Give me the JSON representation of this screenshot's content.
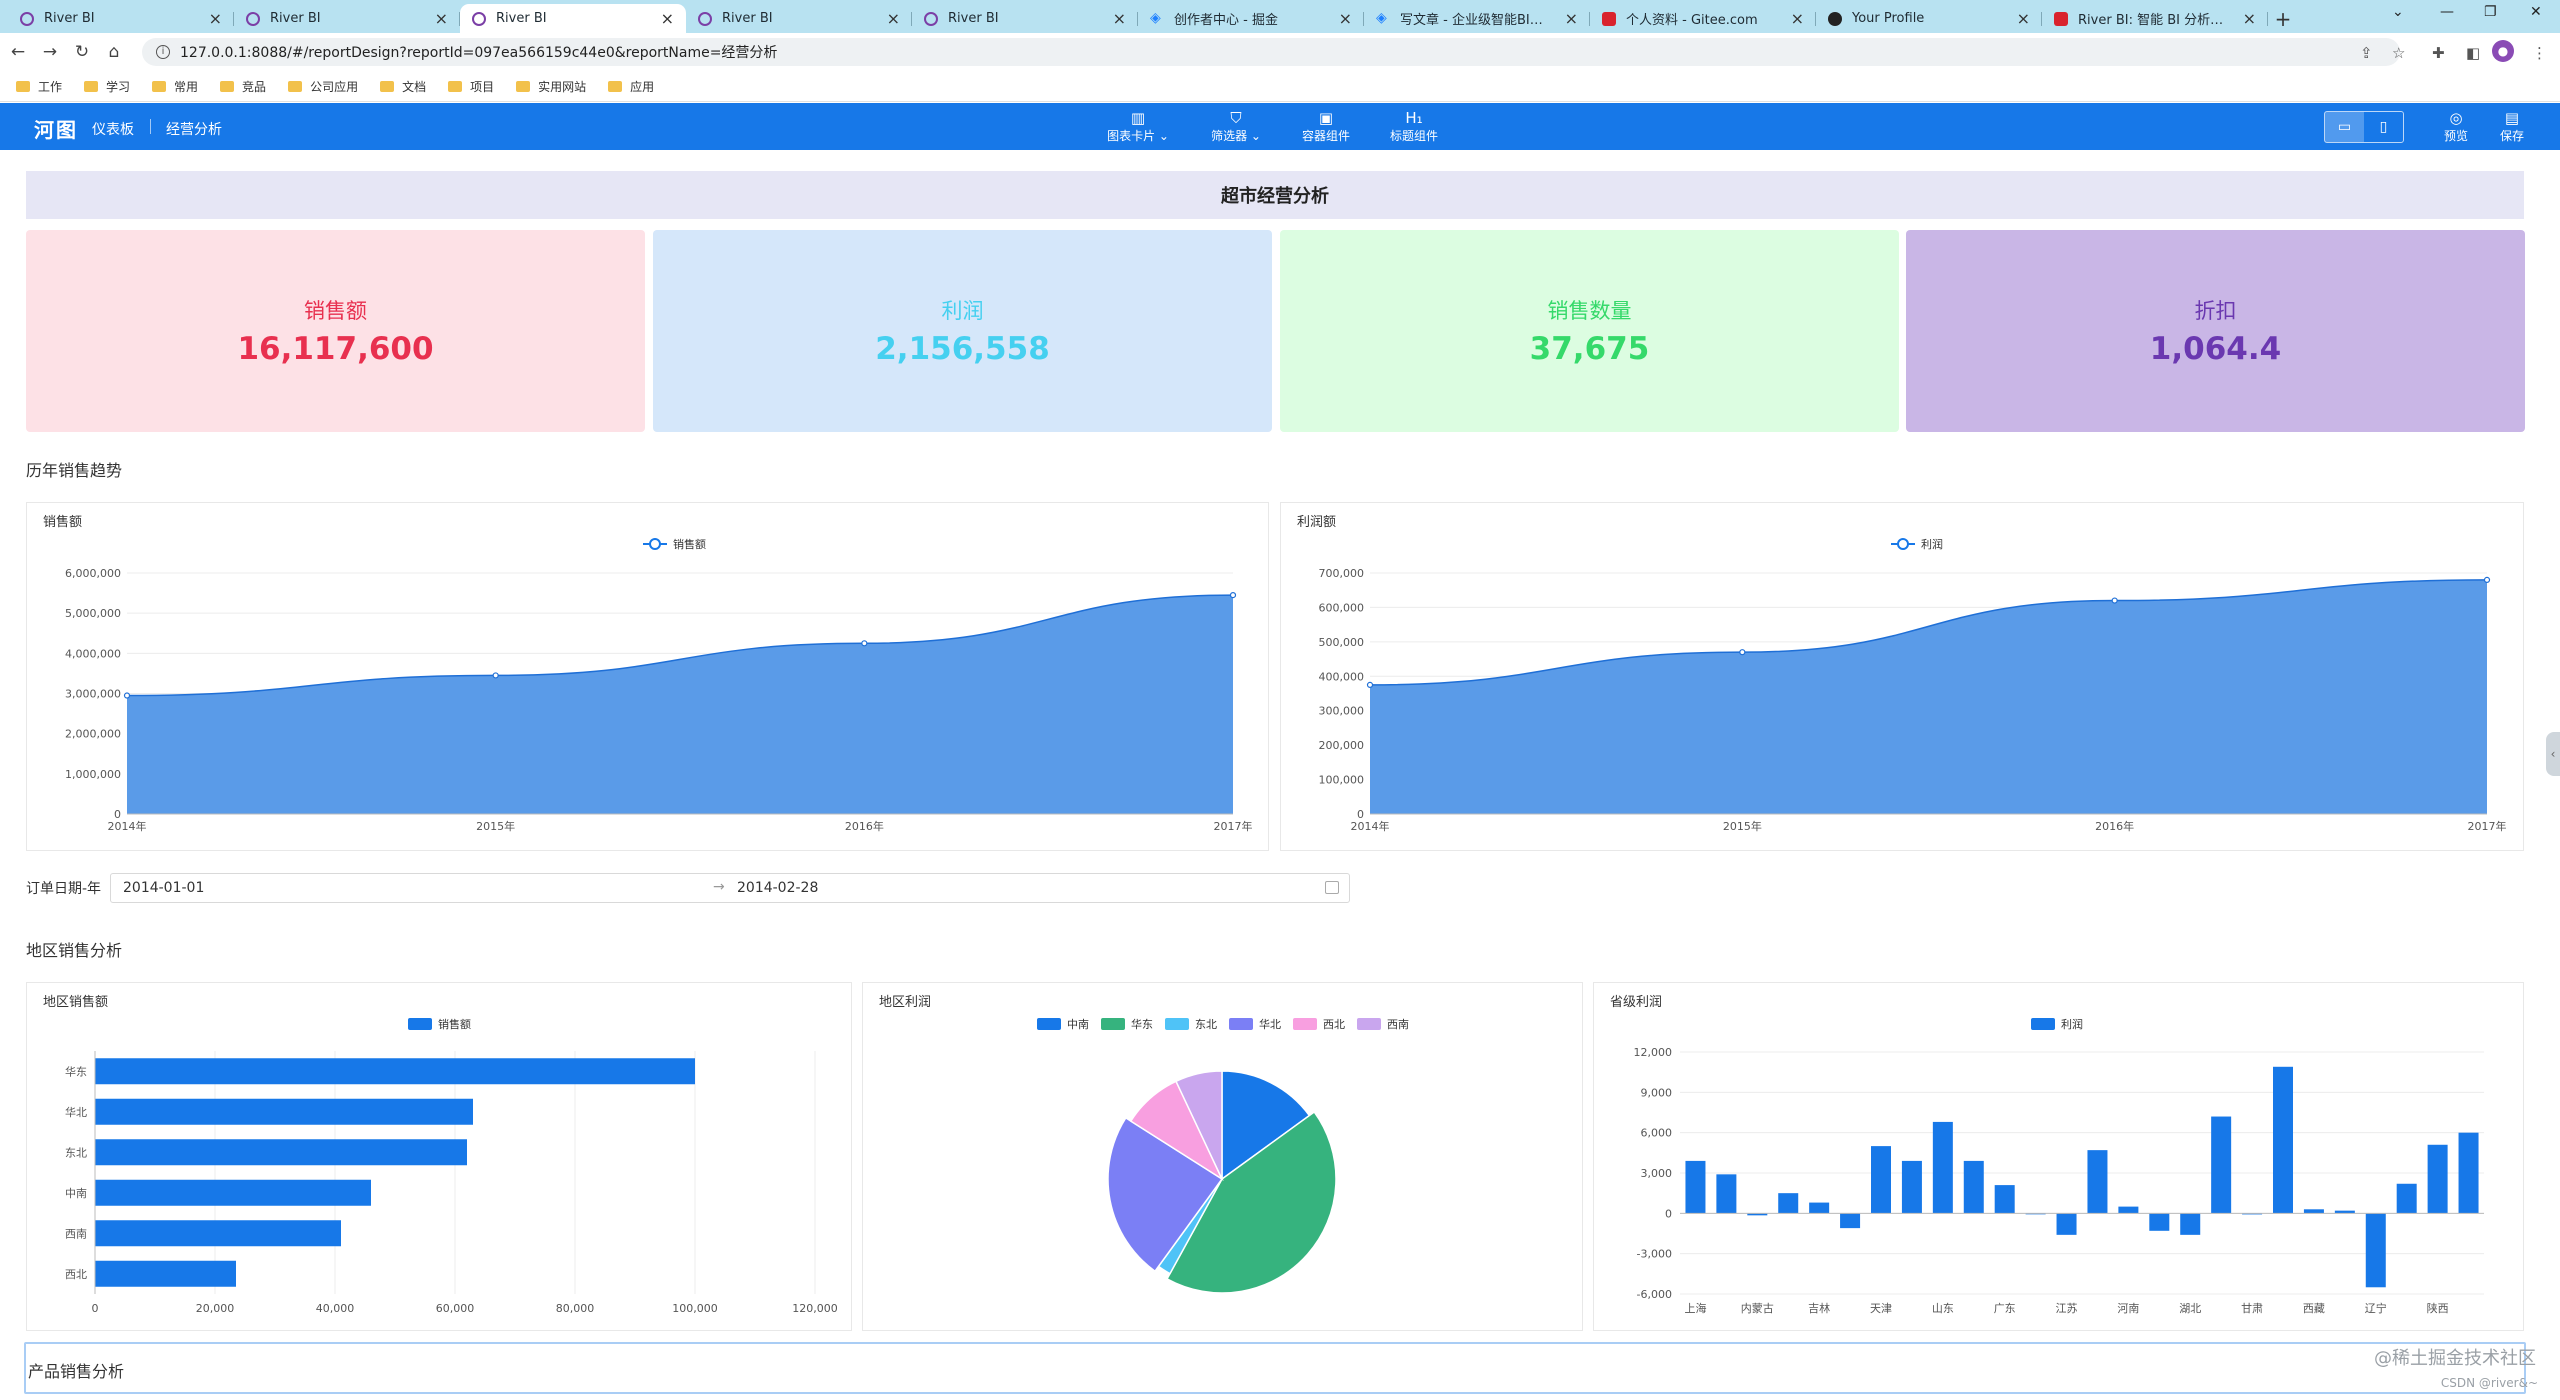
{
  "browser": {
    "tabs": [
      {
        "title": "River BI",
        "icon": "river-bi-icon"
      },
      {
        "title": "River BI",
        "icon": "river-bi-icon"
      },
      {
        "title": "River BI",
        "icon": "river-bi-icon",
        "active": true
      },
      {
        "title": "River BI",
        "icon": "river-bi-icon"
      },
      {
        "title": "River BI",
        "icon": "river-bi-icon"
      },
      {
        "title": "创作者中心 - 掘金",
        "icon": "juejin-icon"
      },
      {
        "title": "写文章 - 企业级智能BI平台开发",
        "icon": "juejin-icon"
      },
      {
        "title": "个人资料 - Gitee.com",
        "icon": "gitee-icon"
      },
      {
        "title": "Your Profile",
        "icon": "github-icon"
      },
      {
        "title": "River BI: 智能 BI 分析平台, 企",
        "icon": "gitee-icon"
      }
    ],
    "url": "127.0.0.1:8088/#/reportDesign?reportId=097ea566159c44e0&reportName=经营分析",
    "bookmarks": [
      "工作",
      "学习",
      "常用",
      "竞品",
      "公司应用",
      "文档",
      "项目",
      "实用网站",
      "应用"
    ]
  },
  "app": {
    "logo": "河图",
    "nav": [
      "仪表板",
      "经营分析"
    ],
    "tools": [
      {
        "label": "图表卡片 ⌄",
        "icon": "bar-chart-icon"
      },
      {
        "label": "筛选器 ⌄",
        "icon": "filter-icon"
      },
      {
        "label": "容器组件",
        "icon": "container-icon"
      },
      {
        "label": "标题组件",
        "icon": "heading-icon"
      }
    ],
    "right_tools": [
      {
        "label": "预览",
        "icon": "preview-icon"
      },
      {
        "label": "保存",
        "icon": "save-icon"
      }
    ]
  },
  "report": {
    "title": "超市经营分析",
    "kpis": [
      {
        "label": "销售额",
        "value": "16,117,600",
        "bg": "#fde1e6",
        "color": "#e8304f"
      },
      {
        "label": "利润",
        "value": "2,156,558",
        "bg": "#d5e7fa",
        "color": "#45d0f0"
      },
      {
        "label": "销售数量",
        "value": "37,675",
        "bg": "#dcfde1",
        "color": "#35d96a"
      },
      {
        "label": "折扣",
        "value": "1,064.4",
        "bg": "#c9b6e6",
        "color": "#6a38b0"
      }
    ],
    "section_trend": "历年销售趋势",
    "section_region": "地区销售分析",
    "section_product": "产品销售分析",
    "filter": {
      "label": "订单日期-年",
      "start": "2014-01-01",
      "end": "2014-02-28",
      "separator": "→"
    }
  },
  "chart_data": [
    {
      "type": "area",
      "title": "销售额",
      "series": [
        {
          "name": "销售额",
          "values": [
            2950000,
            3450000,
            4250000,
            5450000
          ]
        }
      ],
      "categories": [
        "2014年",
        "2015年",
        "2016年",
        "2017年"
      ],
      "yticks": [
        "0",
        "1,000,000",
        "2,000,000",
        "3,000,000",
        "4,000,000",
        "5,000,000",
        "6,000,000"
      ],
      "ylim": [
        0,
        6000000
      ],
      "color": "#5a9be8"
    },
    {
      "type": "area",
      "title": "利润额",
      "series": [
        {
          "name": "利润",
          "values": [
            375000,
            470000,
            620000,
            680000
          ]
        }
      ],
      "categories": [
        "2014年",
        "2015年",
        "2016年",
        "2017年"
      ],
      "yticks": [
        "0",
        "100,000",
        "200,000",
        "300,000",
        "400,000",
        "500,000",
        "600,000",
        "700,000"
      ],
      "ylim": [
        0,
        700000
      ],
      "color": "#5a9be8"
    },
    {
      "type": "bar",
      "orientation": "horizontal",
      "title": "地区销售额",
      "series": [
        {
          "name": "销售额"
        }
      ],
      "categories": [
        "华东",
        "华北",
        "东北",
        "中南",
        "西南",
        "西北"
      ],
      "values": [
        100000,
        63000,
        62000,
        46000,
        41000,
        23500
      ],
      "xticks": [
        "0",
        "20,000",
        "40,000",
        "60,000",
        "80,000",
        "100,000",
        "120,000"
      ],
      "xlim": [
        0,
        120000
      ],
      "color": "#1778e8"
    },
    {
      "type": "pie",
      "title": "地区利润",
      "legend": [
        "中南",
        "华东",
        "东北",
        "华北",
        "西北",
        "西南"
      ],
      "slices": [
        {
          "name": "中南",
          "value": 15,
          "color": "#1778e8"
        },
        {
          "name": "华东",
          "value": 43,
          "color": "#36b37e"
        },
        {
          "name": "东北",
          "value": 2,
          "color": "#4fc3f7"
        },
        {
          "name": "华北",
          "value": 24,
          "color": "#7b7ff5"
        },
        {
          "name": "西北",
          "value": 9,
          "color": "#f89fe0"
        },
        {
          "name": "西南",
          "value": 7,
          "color": "#c9a6ee"
        }
      ]
    },
    {
      "type": "bar",
      "title": "省级利润",
      "series": [
        {
          "name": "利润"
        }
      ],
      "values": [
        3900,
        2900,
        -150,
        1500,
        800,
        -1100,
        5000,
        3900,
        6800,
        3900,
        2100,
        -50,
        -1600,
        4700,
        500,
        -1300,
        -1600,
        7200,
        -80,
        10900,
        300,
        200,
        -5500,
        2200,
        5100,
        6000
      ],
      "category_labels": [
        "上海",
        "内蒙古",
        "吉林",
        "天津",
        "山东",
        "广东",
        "江苏",
        "河南",
        "湖北",
        "甘肃",
        "西藏",
        "辽宁",
        "陕西"
      ],
      "yticks": [
        "-6,000",
        "-3,000",
        "0",
        "3,000",
        "6,000",
        "9,000",
        "12,000"
      ],
      "ylim": [
        -6000,
        12000
      ],
      "color": "#1778e8"
    }
  ],
  "watermark": "@稀土掘金技术社区",
  "watermark_small": "CSDN @river&~"
}
